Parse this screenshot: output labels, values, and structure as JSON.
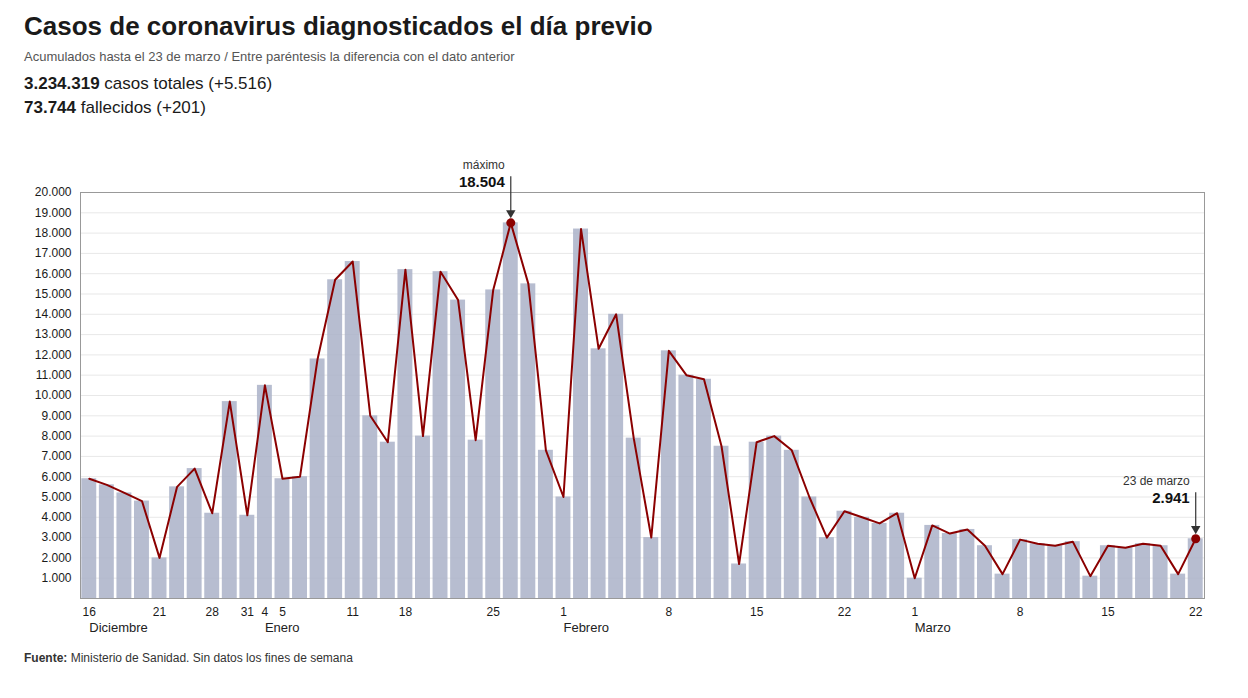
{
  "chart_data": {
    "type": "bar",
    "title": "Casos de coronavirus diagnosticados el día previo",
    "subtitle": "Acumulados hasta el 23 de marzo / Entre paréntesis la diferencia con el dato anterior",
    "stats": [
      {
        "bold": "3.234.319",
        "text": " casos totales (+5.516)"
      },
      {
        "bold": "73.744",
        "text": " fallecidos (+201)"
      }
    ],
    "caption": {
      "bold": "Fuente:",
      "text": " Ministerio de Sanidad. Sin datos los fines de semana"
    },
    "categories": [
      "16",
      null,
      null,
      null,
      "21",
      null,
      null,
      "28",
      null,
      "31",
      "4",
      "5",
      null,
      null,
      null,
      "11",
      null,
      null,
      "18",
      null,
      null,
      null,
      null,
      "25",
      null,
      null,
      null,
      "1",
      null,
      null,
      null,
      null,
      null,
      "8",
      null,
      null,
      null,
      null,
      "15",
      null,
      null,
      null,
      null,
      "22",
      null,
      null,
      null,
      "1",
      null,
      null,
      null,
      null,
      null,
      "8",
      null,
      null,
      null,
      null,
      "15",
      null,
      null,
      null,
      null,
      "22"
    ],
    "series": [
      {
        "type": "bar",
        "color": "#aab2c8",
        "values": [
          5900,
          5600,
          5200,
          4800,
          2000,
          5500,
          6400,
          4200,
          9700,
          4100,
          10500,
          5900,
          6000,
          11800,
          15700,
          16600,
          9000,
          7700,
          16200,
          8000,
          16100,
          14700,
          7800,
          15200,
          18504,
          15500,
          7300,
          5000,
          18200,
          12300,
          14000,
          7900,
          3000,
          12200,
          11000,
          10800,
          7500,
          1700,
          7700,
          8000,
          7300,
          5000,
          3000,
          4300,
          4000,
          3700,
          4200,
          1000,
          3600,
          3200,
          3400,
          2600,
          1200,
          2900,
          2700,
          2600,
          2800,
          1100,
          2600,
          2500,
          2700,
          2600,
          1200,
          2941
        ]
      },
      {
        "type": "line",
        "color": "#8b0000",
        "values": [
          5900,
          5600,
          5200,
          4800,
          2000,
          5500,
          6400,
          4200,
          9700,
          4100,
          10500,
          5900,
          6000,
          11800,
          15700,
          16600,
          9000,
          7700,
          16200,
          8000,
          16100,
          14700,
          7800,
          15200,
          18504,
          15500,
          7300,
          5000,
          18200,
          12300,
          14000,
          7900,
          3000,
          12200,
          11000,
          10800,
          7500,
          1700,
          7700,
          8000,
          7300,
          5000,
          3000,
          4300,
          4000,
          3700,
          4200,
          1000,
          3600,
          3200,
          3400,
          2600,
          1200,
          2900,
          2700,
          2600,
          2800,
          1100,
          2600,
          2500,
          2700,
          2600,
          1200,
          2941
        ]
      }
    ],
    "annotations": [
      {
        "x": 24,
        "value": 18504,
        "label": "18.504",
        "note": "máximo"
      },
      {
        "x": 63,
        "value": 2941,
        "label": "2.941",
        "note": "23 de marzo"
      }
    ],
    "month_labels": [
      {
        "x": 0,
        "label": "Diciembre"
      },
      {
        "x": 10,
        "label": "Enero"
      },
      {
        "x": 27,
        "label": "Febrero"
      },
      {
        "x": 47,
        "label": "Marzo"
      }
    ],
    "ylim": [
      0,
      20000
    ],
    "yticks": [
      {
        "value": 1000,
        "label": "1.000"
      },
      {
        "value": 2000,
        "label": "2.000"
      },
      {
        "value": 3000,
        "label": "3.000"
      },
      {
        "value": 4000,
        "label": "4.000"
      },
      {
        "value": 5000,
        "label": "5.000"
      },
      {
        "value": 6000,
        "label": "6.000"
      },
      {
        "value": 7000,
        "label": "7.000"
      },
      {
        "value": 8000,
        "label": "8.000"
      },
      {
        "value": 9000,
        "label": "9.000"
      },
      {
        "value": 10000,
        "label": "10.000"
      },
      {
        "value": 11000,
        "label": "11.000"
      },
      {
        "value": 12000,
        "label": "12.000"
      },
      {
        "value": 13000,
        "label": "13.000"
      },
      {
        "value": 14000,
        "label": "14.000"
      },
      {
        "value": 15000,
        "label": "15.000"
      },
      {
        "value": 16000,
        "label": "16.000"
      },
      {
        "value": 17000,
        "label": "17.000"
      },
      {
        "value": 18000,
        "label": "18.000"
      },
      {
        "value": 19000,
        "label": "19.000"
      },
      {
        "value": 20000,
        "label": "20.000"
      }
    ],
    "grid": true
  }
}
